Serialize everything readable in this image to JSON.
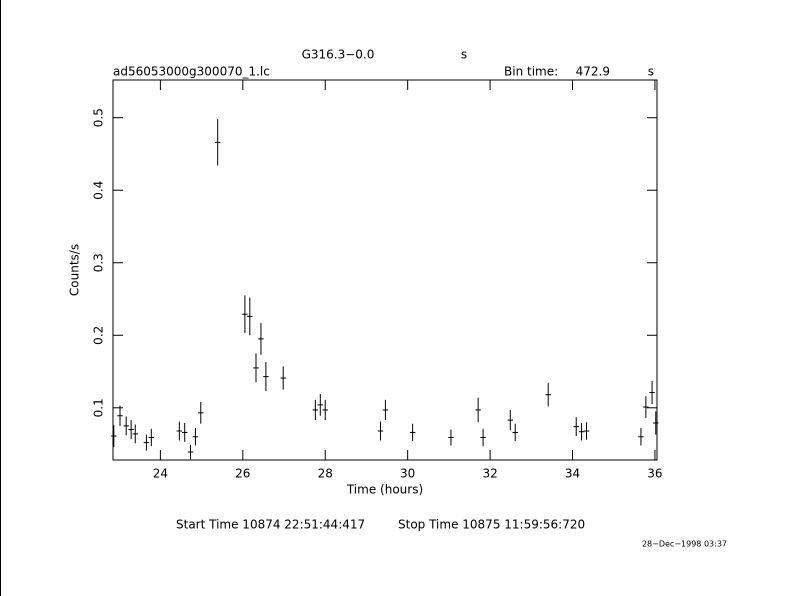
{
  "chart_data": {
    "type": "errorbar",
    "title": "G316.3−0.0",
    "title_unit": "s",
    "file_name": "ad56053000g300070_1.lc",
    "bin_time_label": "Bin time:",
    "bin_time": 472.9,
    "bin_time_unit": "s",
    "x_label": "Time (hours)",
    "y_label": "Counts/s",
    "start_time": "Start Time 10874  22:51:44:417",
    "stop_time": "Stop Time 10875  11:59:56:720",
    "date_stamp": "28−Dec−1998 03:37",
    "color": "#000000",
    "x": [
      22.87,
      23.02,
      23.17,
      23.29,
      23.39,
      23.66,
      23.78,
      24.46,
      24.59,
      24.73,
      24.85,
      24.98,
      25.39,
      26.05,
      26.17,
      26.32,
      26.44,
      26.56,
      26.98,
      27.76,
      27.88,
      28.0,
      29.34,
      29.46,
      30.12,
      31.05,
      31.71,
      31.83,
      32.49,
      32.61,
      33.41,
      34.09,
      34.22,
      34.34,
      35.66,
      35.78,
      35.93,
      36.02
    ],
    "values": [
      0.061,
      0.089,
      0.075,
      0.07,
      0.064,
      0.052,
      0.059,
      0.068,
      0.066,
      0.039,
      0.06,
      0.093,
      0.466,
      0.229,
      0.226,
      0.155,
      0.195,
      0.143,
      0.141,
      0.097,
      0.104,
      0.097,
      0.068,
      0.097,
      0.066,
      0.059,
      0.097,
      0.059,
      0.083,
      0.066,
      0.118,
      0.074,
      0.067,
      0.068,
      0.06,
      0.101,
      0.121,
      0.079
    ],
    "yerr": [
      0.015,
      0.014,
      0.013,
      0.013,
      0.013,
      0.011,
      0.012,
      0.013,
      0.013,
      0.01,
      0.012,
      0.015,
      0.032,
      0.026,
      0.026,
      0.02,
      0.022,
      0.02,
      0.016,
      0.014,
      0.015,
      0.014,
      0.013,
      0.014,
      0.012,
      0.011,
      0.017,
      0.012,
      0.014,
      0.012,
      0.016,
      0.013,
      0.012,
      0.012,
      0.012,
      0.015,
      0.016,
      0.016
    ],
    "xerr": 0.066,
    "xlim": [
      22.85,
      36.05
    ],
    "ylim": [
      0.028,
      0.552
    ],
    "xticks": [
      24,
      26,
      28,
      30,
      32,
      34,
      36
    ],
    "yticks": [
      0.1,
      0.2,
      0.3,
      0.4,
      0.5
    ]
  }
}
